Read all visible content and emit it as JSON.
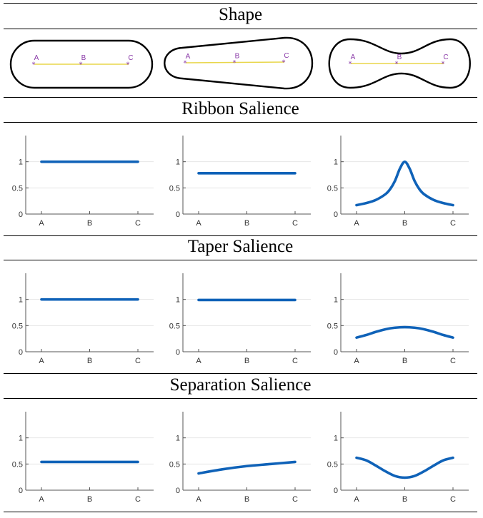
{
  "sections": {
    "shape": "Shape",
    "ribbon": "Ribbon Salience",
    "taper": "Taper Salience",
    "separation": "Separation Salience"
  },
  "shape_points": [
    "A",
    "B",
    "C"
  ],
  "colors": {
    "line": "#0f62b8",
    "grid": "#e6e6e6",
    "axis": "#555555",
    "medial": "#e8d64a",
    "marker": "#8a3aa8"
  },
  "chart_data": [
    {
      "type": "line",
      "row": "Ribbon Salience",
      "col": 1,
      "categories": [
        "A",
        "B",
        "C"
      ],
      "x": [
        0,
        0.5,
        1
      ],
      "values": [
        1,
        1,
        1
      ],
      "yticks": [
        0,
        0.5,
        1
      ],
      "ylim": [
        0,
        1.5
      ]
    },
    {
      "type": "line",
      "row": "Ribbon Salience",
      "col": 2,
      "categories": [
        "A",
        "B",
        "C"
      ],
      "x": [
        0,
        0.5,
        1
      ],
      "values": [
        0.78,
        0.78,
        0.78
      ],
      "yticks": [
        0,
        0.5,
        1
      ],
      "ylim": [
        0,
        1.5
      ]
    },
    {
      "type": "line",
      "row": "Ribbon Salience",
      "col": 3,
      "categories": [
        "A",
        "B",
        "C"
      ],
      "x": [
        0,
        0.1,
        0.2,
        0.3,
        0.35,
        0.4,
        0.45,
        0.5,
        0.55,
        0.6,
        0.65,
        0.7,
        0.8,
        0.9,
        1
      ],
      "values": [
        0.17,
        0.21,
        0.27,
        0.38,
        0.48,
        0.64,
        0.87,
        1.0,
        0.87,
        0.64,
        0.48,
        0.38,
        0.27,
        0.21,
        0.17
      ],
      "yticks": [
        0,
        0.5,
        1
      ],
      "ylim": [
        0,
        1.5
      ]
    },
    {
      "type": "line",
      "row": "Taper Salience",
      "col": 1,
      "categories": [
        "A",
        "B",
        "C"
      ],
      "x": [
        0,
        0.5,
        1
      ],
      "values": [
        1,
        1,
        1
      ],
      "yticks": [
        0,
        0.5,
        1
      ],
      "ylim": [
        0,
        1.5
      ]
    },
    {
      "type": "line",
      "row": "Taper Salience",
      "col": 2,
      "categories": [
        "A",
        "B",
        "C"
      ],
      "x": [
        0,
        0.5,
        1
      ],
      "values": [
        0.99,
        0.99,
        0.99
      ],
      "yticks": [
        0,
        0.5,
        1
      ],
      "ylim": [
        0,
        1.5
      ]
    },
    {
      "type": "line",
      "row": "Taper Salience",
      "col": 3,
      "categories": [
        "A",
        "B",
        "C"
      ],
      "x": [
        0,
        0.1,
        0.2,
        0.3,
        0.4,
        0.5,
        0.6,
        0.7,
        0.8,
        0.9,
        1
      ],
      "values": [
        0.27,
        0.32,
        0.38,
        0.43,
        0.46,
        0.47,
        0.46,
        0.43,
        0.38,
        0.32,
        0.27
      ],
      "yticks": [
        0,
        0.5,
        1
      ],
      "ylim": [
        0,
        1.5
      ]
    },
    {
      "type": "line",
      "row": "Separation Salience",
      "col": 1,
      "categories": [
        "A",
        "B",
        "C"
      ],
      "x": [
        0,
        0.5,
        1
      ],
      "values": [
        0.54,
        0.54,
        0.54
      ],
      "yticks": [
        0,
        0.5,
        1
      ],
      "ylim": [
        0,
        1.5
      ]
    },
    {
      "type": "line",
      "row": "Separation Salience",
      "col": 2,
      "categories": [
        "A",
        "B",
        "C"
      ],
      "x": [
        0,
        0.25,
        0.5,
        0.75,
        1
      ],
      "values": [
        0.32,
        0.4,
        0.46,
        0.5,
        0.54
      ],
      "yticks": [
        0,
        0.5,
        1
      ],
      "ylim": [
        0,
        1.5
      ]
    },
    {
      "type": "line",
      "row": "Separation Salience",
      "col": 3,
      "categories": [
        "A",
        "B",
        "C"
      ],
      "x": [
        0,
        0.1,
        0.2,
        0.3,
        0.4,
        0.5,
        0.6,
        0.7,
        0.8,
        0.9,
        1
      ],
      "values": [
        0.62,
        0.57,
        0.47,
        0.36,
        0.27,
        0.24,
        0.27,
        0.36,
        0.47,
        0.57,
        0.62
      ],
      "yticks": [
        0,
        0.5,
        1
      ],
      "ylim": [
        0,
        1.5
      ]
    }
  ]
}
